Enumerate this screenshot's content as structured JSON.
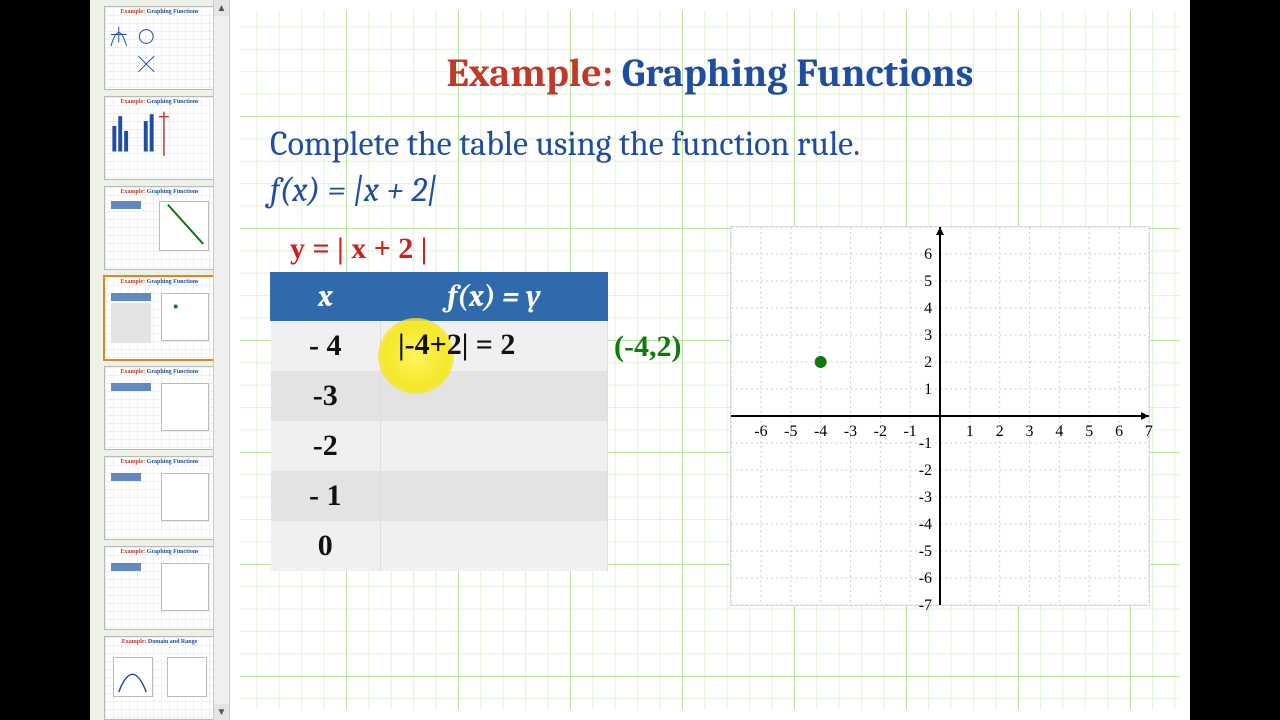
{
  "slide": {
    "title_prefix": "Example:",
    "title_main": "Graphing Functions",
    "instruction": "Complete the table using the function rule.",
    "function_tex": "f(x) = |x + 2|",
    "handwritten_eq": "y = | x + 2 |",
    "highlight_color": "#f5e72a",
    "colors": {
      "heading_red": "#c0392b",
      "heading_blue": "#1f4ea0",
      "table_header_bg": "#2f6aad",
      "grid_major": "#7fcf5a",
      "grid_minor": "#c8eeb4",
      "hand_red": "#cc1f1f",
      "hand_green": "#0d7a0d"
    }
  },
  "table": {
    "col_x": "x",
    "col_y": "f(x) = y",
    "rows": [
      {
        "x": "- 4",
        "calc": "|-4+2| = 2"
      },
      {
        "x": "-3",
        "calc": ""
      },
      {
        "x": "-2",
        "calc": ""
      },
      {
        "x": "- 1",
        "calc": ""
      },
      {
        "x": "0",
        "calc": ""
      }
    ],
    "point_label": "(-4,2)"
  },
  "chart": {
    "type": "scatter",
    "xlim": [
      -7,
      7
    ],
    "ylim": [
      -7,
      7
    ],
    "xtick_step": 1,
    "ytick_step": 1,
    "x_labels": [
      "-6",
      "-5",
      "-4",
      "-3",
      "-2",
      "-1",
      "",
      "1",
      "2",
      "3",
      "4",
      "5",
      "6",
      "7"
    ],
    "y_labels_pos": [
      "1",
      "2",
      "3",
      "4",
      "5",
      "6"
    ],
    "y_labels_neg": [
      "-1",
      "-2",
      "-3",
      "-4",
      "-5",
      "-6",
      "-7"
    ],
    "axis_color": "#000000",
    "grid_color": "#cccccc",
    "tick_fontsize": 16,
    "points": [
      {
        "x": -4,
        "y": 2,
        "color": "#0d7a0d",
        "size": 6
      }
    ],
    "background_color": "#ffffff"
  },
  "thumbnails": {
    "count": 8,
    "selected_index": 3
  }
}
